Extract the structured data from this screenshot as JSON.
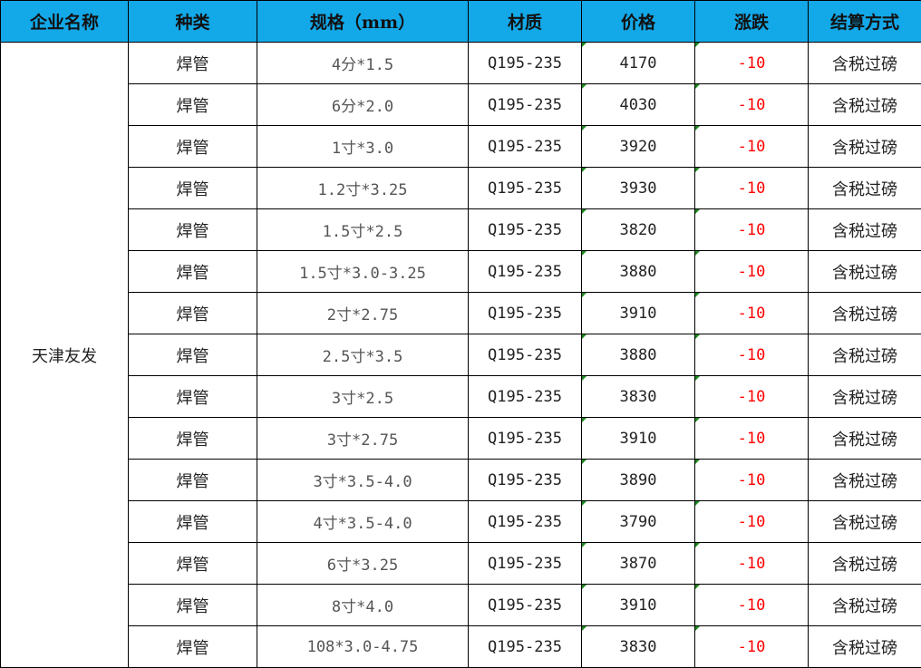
{
  "headers": [
    "企业名称",
    "种类",
    "规格（mm）",
    "材质",
    "价格",
    "涨跌",
    "结算方式"
  ],
  "company": "天津友发",
  "colors": {
    "header_bg": "#13A8E8",
    "change_text": "#ff0000",
    "indicator": "#1a8a1a"
  },
  "rows": [
    {
      "type": "焊管",
      "spec": "4分*1.5",
      "material": "Q195-235",
      "price": "4170",
      "change": "-10",
      "settlement": "含税过磅"
    },
    {
      "type": "焊管",
      "spec": "6分*2.0",
      "material": "Q195-235",
      "price": "4030",
      "change": "-10",
      "settlement": "含税过磅"
    },
    {
      "type": "焊管",
      "spec": "1寸*3.0",
      "material": "Q195-235",
      "price": "3920",
      "change": "-10",
      "settlement": "含税过磅"
    },
    {
      "type": "焊管",
      "spec": "1.2寸*3.25",
      "material": "Q195-235",
      "price": "3930",
      "change": "-10",
      "settlement": "含税过磅"
    },
    {
      "type": "焊管",
      "spec": "1.5寸*2.5",
      "material": "Q195-235",
      "price": "3820",
      "change": "-10",
      "settlement": "含税过磅"
    },
    {
      "type": "焊管",
      "spec": "1.5寸*3.0-3.25",
      "material": "Q195-235",
      "price": "3880",
      "change": "-10",
      "settlement": "含税过磅"
    },
    {
      "type": "焊管",
      "spec": "2寸*2.75",
      "material": "Q195-235",
      "price": "3910",
      "change": "-10",
      "settlement": "含税过磅"
    },
    {
      "type": "焊管",
      "spec": "2.5寸*3.5",
      "material": "Q195-235",
      "price": "3880",
      "change": "-10",
      "settlement": "含税过磅"
    },
    {
      "type": "焊管",
      "spec": "3寸*2.5",
      "material": "Q195-235",
      "price": "3830",
      "change": "-10",
      "settlement": "含税过磅"
    },
    {
      "type": "焊管",
      "spec": "3寸*2.75",
      "material": "Q195-235",
      "price": "3910",
      "change": "-10",
      "settlement": "含税过磅"
    },
    {
      "type": "焊管",
      "spec": "3寸*3.5-4.0",
      "material": "Q195-235",
      "price": "3890",
      "change": "-10",
      "settlement": "含税过磅"
    },
    {
      "type": "焊管",
      "spec": "4寸*3.5-4.0",
      "material": "Q195-235",
      "price": "3790",
      "change": "-10",
      "settlement": "含税过磅"
    },
    {
      "type": "焊管",
      "spec": "6寸*3.25",
      "material": "Q195-235",
      "price": "3870",
      "change": "-10",
      "settlement": "含税过磅"
    },
    {
      "type": "焊管",
      "spec": "8寸*4.0",
      "material": "Q195-235",
      "price": "3910",
      "change": "-10",
      "settlement": "含税过磅"
    },
    {
      "type": "焊管",
      "spec": "108*3.0-4.75",
      "material": "Q195-235",
      "price": "3830",
      "change": "-10",
      "settlement": "含税过磅"
    }
  ]
}
